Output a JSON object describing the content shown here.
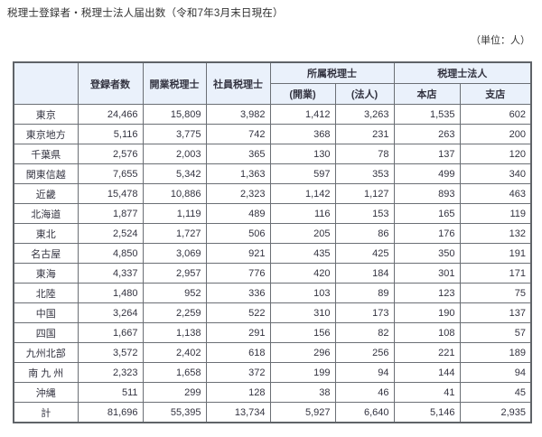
{
  "page": {
    "title": "税理士登録者・税理士法人届出数（令和7年3月末日現在）",
    "unit_label": "（単位：人）"
  },
  "table": {
    "header": {
      "corner": "",
      "col_registered": "登録者数",
      "col_practicing": "開業税理士",
      "col_partner": "社員税理士",
      "group_affiliated": "所属税理士",
      "group_corporation": "税理士法人",
      "sub_affiliated_practicing": "(開業)",
      "sub_affiliated_corporation": "(法人)",
      "sub_head_office": "本店",
      "sub_branch": "支店"
    },
    "rows": [
      {
        "label": "東京",
        "values": [
          "24,466",
          "15,809",
          "3,982",
          "1,412",
          "3,263",
          "1,535",
          "602"
        ]
      },
      {
        "label": "東京地方",
        "values": [
          "5,116",
          "3,775",
          "742",
          "368",
          "231",
          "263",
          "200"
        ]
      },
      {
        "label": "千葉県",
        "values": [
          "2,576",
          "2,003",
          "365",
          "130",
          "78",
          "137",
          "120"
        ]
      },
      {
        "label": "関東信越",
        "values": [
          "7,655",
          "5,342",
          "1,363",
          "597",
          "353",
          "499",
          "340"
        ]
      },
      {
        "label": "近畿",
        "values": [
          "15,478",
          "10,886",
          "2,323",
          "1,142",
          "1,127",
          "893",
          "463"
        ]
      },
      {
        "label": "北海道",
        "values": [
          "1,877",
          "1,119",
          "489",
          "116",
          "153",
          "165",
          "119"
        ]
      },
      {
        "label": "東北",
        "values": [
          "2,524",
          "1,727",
          "506",
          "205",
          "86",
          "176",
          "132"
        ]
      },
      {
        "label": "名古屋",
        "values": [
          "4,850",
          "3,069",
          "921",
          "435",
          "425",
          "350",
          "191"
        ]
      },
      {
        "label": "東海",
        "values": [
          "4,337",
          "2,957",
          "776",
          "420",
          "184",
          "301",
          "171"
        ]
      },
      {
        "label": "北陸",
        "values": [
          "1,480",
          "952",
          "336",
          "103",
          "89",
          "123",
          "75"
        ]
      },
      {
        "label": "中国",
        "values": [
          "3,264",
          "2,259",
          "522",
          "310",
          "173",
          "190",
          "137"
        ]
      },
      {
        "label": "四国",
        "values": [
          "1,667",
          "1,138",
          "291",
          "156",
          "82",
          "108",
          "57"
        ]
      },
      {
        "label": "九州北部",
        "values": [
          "3,572",
          "2,402",
          "618",
          "296",
          "256",
          "221",
          "189"
        ]
      },
      {
        "label": "南 九 州",
        "values": [
          "2,323",
          "1,658",
          "372",
          "199",
          "94",
          "144",
          "94"
        ]
      },
      {
        "label": "沖縄",
        "values": [
          "511",
          "299",
          "128",
          "38",
          "46",
          "41",
          "45"
        ]
      },
      {
        "label": "計",
        "values": [
          "81,696",
          "55,395",
          "13,734",
          "5,927",
          "6,640",
          "5,146",
          "2,935"
        ]
      }
    ]
  },
  "colors": {
    "header_bg": "#eaf1fb",
    "border": "#6b6f75",
    "text": "#333340"
  }
}
